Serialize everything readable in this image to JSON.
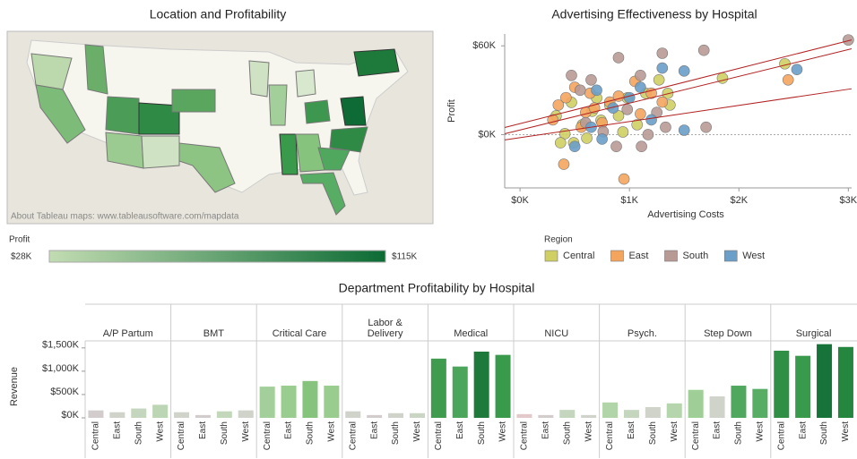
{
  "map": {
    "title": "Location and Profitability",
    "attribution": "About Tableau maps: www.tableausoftware.com/mapdata",
    "legend_title": "Profit",
    "legend_min": "$28K",
    "legend_max": "$115K"
  },
  "chart_data": [
    {
      "type": "scatter",
      "title": "Advertising Effectiveness by Hospital",
      "x_label": "Advertising Costs",
      "y_label": "Profit",
      "xlim": [
        -140,
        3030
      ],
      "ylim": [
        -36000,
        68000
      ],
      "xticks": [
        {
          "value": 0,
          "label": "$0K"
        },
        {
          "value": 1000,
          "label": "$1K"
        },
        {
          "value": 2000,
          "label": "$2K"
        },
        {
          "value": 3000,
          "label": "$3K"
        }
      ],
      "yticks": [
        {
          "value": 0,
          "label": "$0K"
        },
        {
          "value": 60000,
          "label": "$60K"
        }
      ],
      "zero_line": true,
      "legend_title": "Region",
      "series": [
        {
          "name": "Central",
          "color": "#cfcf63",
          "x": [
            330,
            410,
            490,
            570,
            660,
            740,
            820,
            900,
            980,
            1070,
            1150,
            1270,
            1350,
            1370,
            1850,
            2420,
            470,
            610,
            700,
            940,
            370
          ],
          "y": [
            12700,
            600,
            -5500,
            6700,
            15800,
            9700,
            20000,
            12700,
            24800,
            6700,
            27900,
            37000,
            27900,
            20000,
            38200,
            47900,
            21800,
            -2400,
            24800,
            1800,
            -5500
          ]
        },
        {
          "name": "East",
          "color": "#f4a55d",
          "x": [
            300,
            350,
            420,
            500,
            600,
            680,
            750,
            820,
            900,
            1100,
            1200,
            1050,
            400,
            950,
            2450,
            560,
            640,
            1300
          ],
          "y": [
            10000,
            20000,
            25000,
            32000,
            15000,
            18000,
            8000,
            22000,
            26000,
            14000,
            28000,
            36000,
            -20000,
            -30000,
            37000,
            5000,
            28000,
            22000
          ]
        },
        {
          "name": "South",
          "color": "#b89a95",
          "x": [
            550,
            650,
            900,
            1100,
            1300,
            1680,
            3000,
            1250,
            1170,
            1330,
            1700,
            760,
            880,
            1110,
            470,
            980,
            600
          ],
          "y": [
            30000,
            37000,
            52000,
            40000,
            55000,
            57000,
            64000,
            15000,
            0,
            5000,
            5000,
            2000,
            -8000,
            -8000,
            40000,
            17000,
            8000
          ]
        },
        {
          "name": "West",
          "color": "#6a9fc9",
          "x": [
            500,
            700,
            1300,
            1500,
            2530,
            1500,
            1000,
            850,
            1200,
            650,
            750,
            1100
          ],
          "y": [
            -8000,
            30000,
            45000,
            43000,
            44000,
            3000,
            25000,
            18000,
            10000,
            5000,
            -3000,
            32000
          ]
        }
      ],
      "trend_lines": [
        {
          "x": [
            -140,
            3030
          ],
          "y": [
            4800,
            64000
          ]
        },
        {
          "x": [
            -140,
            3030
          ],
          "y": [
            600,
            58000
          ]
        },
        {
          "x": [
            -140,
            3030
          ],
          "y": [
            -3600,
            31000
          ]
        }
      ],
      "trend_color": "#b22222"
    },
    {
      "type": "bar",
      "title": "Department Profitability by Hospital",
      "y_label": "Revenue",
      "ylim": [
        0,
        1650000
      ],
      "yticks": [
        {
          "value": 0,
          "label": "$0K"
        },
        {
          "value": 500000,
          "label": "$500K"
        },
        {
          "value": 1000000,
          "label": "$1,000K"
        },
        {
          "value": 1500000,
          "label": "$1,500K"
        }
      ],
      "categories": [
        "Central",
        "East",
        "South",
        "West"
      ],
      "facets": [
        {
          "name": "A/P Partum",
          "values": [
            160000,
            120000,
            200000,
            280000
          ],
          "colors": [
            "#d3cccc",
            "#cfd3ca",
            "#c5d6bf",
            "#bcd5b4"
          ]
        },
        {
          "name": "BMT",
          "values": [
            120000,
            60000,
            140000,
            160000
          ],
          "colors": [
            "#cfd3ca",
            "#d3cccc",
            "#c3d8bb",
            "#cfd3ca"
          ]
        },
        {
          "name": "Critical Care",
          "values": [
            670000,
            690000,
            790000,
            690000
          ],
          "colors": [
            "#a3d09a",
            "#99cc8f",
            "#86c37c",
            "#99cc8f"
          ]
        },
        {
          "name": "Labor & Delivery",
          "values": [
            140000,
            60000,
            100000,
            100000
          ],
          "colors": [
            "#cfd3ca",
            "#d3cccc",
            "#cfd3ca",
            "#cad5c4"
          ]
        },
        {
          "name": "Medical",
          "values": [
            1270000,
            1100000,
            1420000,
            1350000
          ],
          "colors": [
            "#3f9c4f",
            "#4ba55a",
            "#1d7a3a",
            "#3a9a4b"
          ]
        },
        {
          "name": "NICU",
          "values": [
            80000,
            60000,
            170000,
            60000
          ],
          "colors": [
            "#e3c9c9",
            "#d3cccc",
            "#c5d6bf",
            "#cfd3ca"
          ]
        },
        {
          "name": "Psych.",
          "values": [
            330000,
            170000,
            230000,
            310000
          ],
          "colors": [
            "#b1d5a8",
            "#c5d6bf",
            "#cfd3ca",
            "#b5d6ac"
          ]
        },
        {
          "name": "Step Down",
          "values": [
            600000,
            460000,
            690000,
            620000
          ],
          "colors": [
            "#9fcf96",
            "#cfd3ca",
            "#4fa85d",
            "#57ad63"
          ]
        },
        {
          "name": "Surgical",
          "values": [
            1440000,
            1330000,
            1580000,
            1520000
          ],
          "colors": [
            "#2f8f45",
            "#3a9a4b",
            "#16733a",
            "#258640"
          ]
        }
      ]
    }
  ]
}
